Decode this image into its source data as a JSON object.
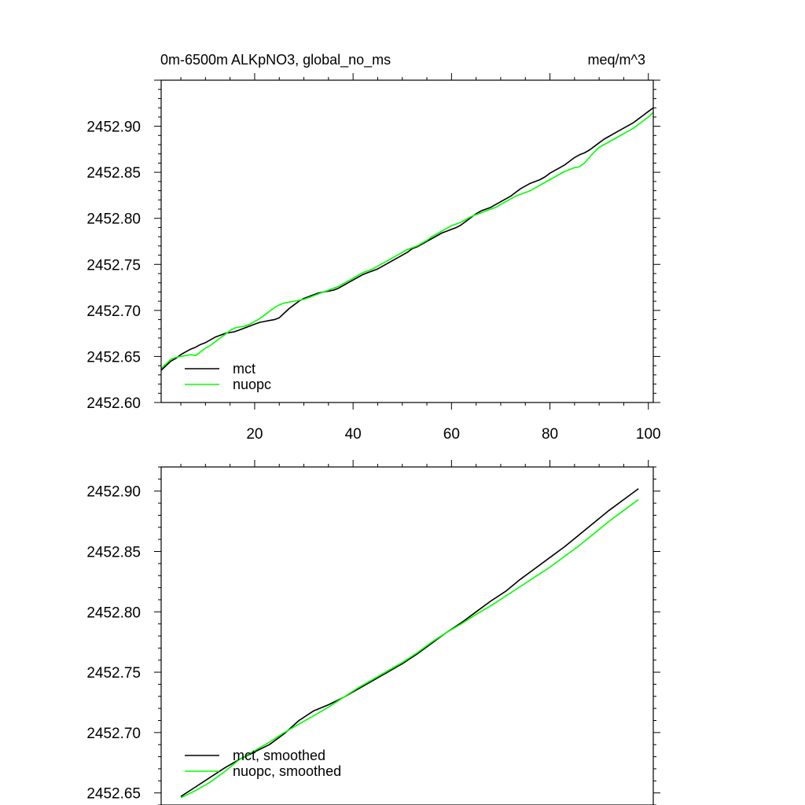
{
  "chart_data": [
    {
      "type": "line",
      "title": "0m-6500m ALKpNO3, global_no_ms",
      "units": "meq/m^3",
      "xlim": [
        1,
        101
      ],
      "ylim": [
        2452.6,
        2452.95
      ],
      "xticks": [
        20,
        40,
        60,
        80,
        100
      ],
      "xtick_labels": [
        "20",
        "40",
        "60",
        "80",
        "100"
      ],
      "yticks": [
        2452.6,
        2452.65,
        2452.7,
        2452.75,
        2452.8,
        2452.85,
        2452.9
      ],
      "ytick_labels": [
        "2452.60",
        "2452.65",
        "2452.70",
        "2452.75",
        "2452.80",
        "2452.85",
        "2452.90"
      ],
      "legend": "bottom-left",
      "grid": false,
      "series": [
        {
          "name": "mct",
          "color": "#000000",
          "x": [
            1,
            2,
            3,
            4,
            5,
            6,
            7,
            8,
            9,
            10,
            11,
            12,
            13,
            14,
            15,
            16,
            17,
            18,
            19,
            20,
            21,
            22,
            23,
            24,
            25,
            26,
            27,
            28,
            29,
            30,
            31,
            32,
            33,
            34,
            35,
            36,
            37,
            38,
            39,
            40,
            41,
            42,
            43,
            44,
            45,
            46,
            47,
            48,
            49,
            50,
            51,
            52,
            53,
            54,
            55,
            56,
            57,
            58,
            59,
            60,
            61,
            62,
            63,
            64,
            65,
            66,
            67,
            68,
            69,
            70,
            71,
            72,
            73,
            74,
            75,
            76,
            77,
            78,
            79,
            80,
            81,
            82,
            83,
            84,
            85,
            86,
            87,
            88,
            89,
            90,
            91,
            92,
            93,
            94,
            95,
            96,
            97,
            98,
            99,
            100,
            101
          ],
          "y": [
            2452.635,
            2452.64,
            2452.645,
            2452.648,
            2452.652,
            2452.655,
            2452.658,
            2452.66,
            2452.663,
            2452.665,
            2452.668,
            2452.671,
            2452.673,
            2452.675,
            2452.676,
            2452.677,
            2452.679,
            2452.681,
            2452.683,
            2452.685,
            2452.687,
            2452.688,
            2452.689,
            2452.69,
            2452.692,
            2452.697,
            2452.702,
            2452.706,
            2452.71,
            2452.713,
            2452.715,
            2452.717,
            2452.719,
            2452.72,
            2452.721,
            2452.722,
            2452.724,
            2452.727,
            2452.73,
            2452.733,
            2452.736,
            2452.739,
            2452.741,
            2452.743,
            2452.745,
            2452.748,
            2452.751,
            2452.754,
            2452.757,
            2452.76,
            2452.763,
            2452.767,
            2452.769,
            2452.772,
            2452.775,
            2452.778,
            2452.781,
            2452.784,
            2452.786,
            2452.788,
            2452.79,
            2452.793,
            2452.797,
            2452.801,
            2452.805,
            2452.808,
            2452.81,
            2452.812,
            2452.815,
            2452.818,
            2452.821,
            2452.824,
            2452.828,
            2452.832,
            2452.835,
            2452.838,
            2452.84,
            2452.842,
            2452.845,
            2452.849,
            2452.852,
            2452.855,
            2452.858,
            2452.862,
            2452.866,
            2452.869,
            2452.871,
            2452.874,
            2452.878,
            2452.882,
            2452.886,
            2452.889,
            2452.892,
            2452.895,
            2452.898,
            2452.901,
            2452.904,
            2452.908,
            2452.912,
            2452.916,
            2452.92
          ]
        },
        {
          "name": "nuopc",
          "color": "#00ff00",
          "x": [
            1,
            2,
            3,
            4,
            5,
            6,
            7,
            8,
            9,
            10,
            11,
            12,
            13,
            14,
            15,
            16,
            17,
            18,
            19,
            20,
            21,
            22,
            23,
            24,
            25,
            26,
            27,
            28,
            29,
            30,
            31,
            32,
            33,
            34,
            35,
            36,
            37,
            38,
            39,
            40,
            41,
            42,
            43,
            44,
            45,
            46,
            47,
            48,
            49,
            50,
            51,
            52,
            53,
            54,
            55,
            56,
            57,
            58,
            59,
            60,
            61,
            62,
            63,
            64,
            65,
            66,
            67,
            68,
            69,
            70,
            71,
            72,
            73,
            74,
            75,
            76,
            77,
            78,
            79,
            80,
            81,
            82,
            83,
            84,
            85,
            86,
            87,
            88,
            89,
            90,
            91,
            92,
            93,
            94,
            95,
            96,
            97,
            98,
            99,
            100,
            101
          ],
          "y": [
            2452.637,
            2452.642,
            2452.647,
            2452.649,
            2452.65,
            2452.651,
            2452.652,
            2452.651,
            2452.655,
            2452.659,
            2452.662,
            2452.666,
            2452.67,
            2452.674,
            2452.678,
            2452.681,
            2452.682,
            2452.683,
            2452.685,
            2452.688,
            2452.691,
            2452.695,
            2452.699,
            2452.703,
            2452.706,
            2452.708,
            2452.709,
            2452.71,
            2452.711,
            2452.712,
            2452.714,
            2452.716,
            2452.718,
            2452.72,
            2452.722,
            2452.724,
            2452.726,
            2452.729,
            2452.732,
            2452.735,
            2452.738,
            2452.741,
            2452.743,
            2452.745,
            2452.748,
            2452.751,
            2452.754,
            2452.757,
            2452.76,
            2452.763,
            2452.766,
            2452.768,
            2452.77,
            2452.773,
            2452.776,
            2452.78,
            2452.783,
            2452.786,
            2452.789,
            2452.792,
            2452.794,
            2452.796,
            2452.799,
            2452.802,
            2452.804,
            2452.806,
            2452.808,
            2452.81,
            2452.812,
            2452.815,
            2452.818,
            2452.821,
            2452.824,
            2452.826,
            2452.828,
            2452.83,
            2452.833,
            2452.836,
            2452.839,
            2452.842,
            2452.845,
            2452.848,
            2452.851,
            2452.853,
            2452.855,
            2452.856,
            2452.86,
            2452.866,
            2452.872,
            2452.877,
            2452.88,
            2452.883,
            2452.886,
            2452.889,
            2452.892,
            2452.895,
            2452.898,
            2452.902,
            2452.906,
            2452.91,
            2452.915
          ]
        }
      ]
    },
    {
      "type": "line",
      "xlim": [
        1,
        101
      ],
      "ylim": [
        2452.64,
        2452.92
      ],
      "xticks": [
        20,
        40,
        60,
        80,
        100
      ],
      "yticks": [
        2452.65,
        2452.7,
        2452.75,
        2452.8,
        2452.85,
        2452.9
      ],
      "ytick_labels": [
        "2452.65",
        "2452.70",
        "2452.75",
        "2452.80",
        "2452.85",
        "2452.90"
      ],
      "legend": "bottom-left",
      "grid": false,
      "series": [
        {
          "name": "mct, smoothed",
          "color": "#000000",
          "x": [
            5,
            8,
            11,
            14,
            17,
            20,
            23,
            26,
            29,
            32,
            35,
            38,
            41,
            44,
            47,
            50,
            53,
            56,
            59,
            62,
            65,
            68,
            71,
            74,
            77,
            80,
            83,
            86,
            89,
            92,
            95,
            98
          ],
          "y": [
            2452.647,
            2452.655,
            2452.663,
            2452.671,
            2452.678,
            2452.684,
            2452.69,
            2452.699,
            2452.71,
            2452.718,
            2452.723,
            2452.729,
            2452.736,
            2452.743,
            2452.75,
            2452.757,
            2452.765,
            2452.774,
            2452.783,
            2452.791,
            2452.8,
            2452.809,
            2452.817,
            2452.827,
            2452.836,
            2452.845,
            2452.854,
            2452.864,
            2452.874,
            2452.884,
            2452.893,
            2452.902
          ]
        },
        {
          "name": "nuopc, smoothed",
          "color": "#00ff00",
          "x": [
            5,
            8,
            11,
            14,
            17,
            20,
            23,
            26,
            29,
            32,
            35,
            38,
            41,
            44,
            47,
            50,
            53,
            56,
            59,
            62,
            65,
            68,
            71,
            74,
            77,
            80,
            83,
            86,
            89,
            92,
            95,
            98
          ],
          "y": [
            2452.646,
            2452.652,
            2452.659,
            2452.668,
            2452.678,
            2452.685,
            2452.692,
            2452.7,
            2452.707,
            2452.714,
            2452.721,
            2452.729,
            2452.737,
            2452.744,
            2452.751,
            2452.758,
            2452.766,
            2452.775,
            2452.783,
            2452.79,
            2452.798,
            2452.805,
            2452.813,
            2452.821,
            2452.829,
            2452.837,
            2452.846,
            2452.855,
            2452.865,
            2452.875,
            2452.884,
            2452.893
          ]
        }
      ]
    }
  ]
}
